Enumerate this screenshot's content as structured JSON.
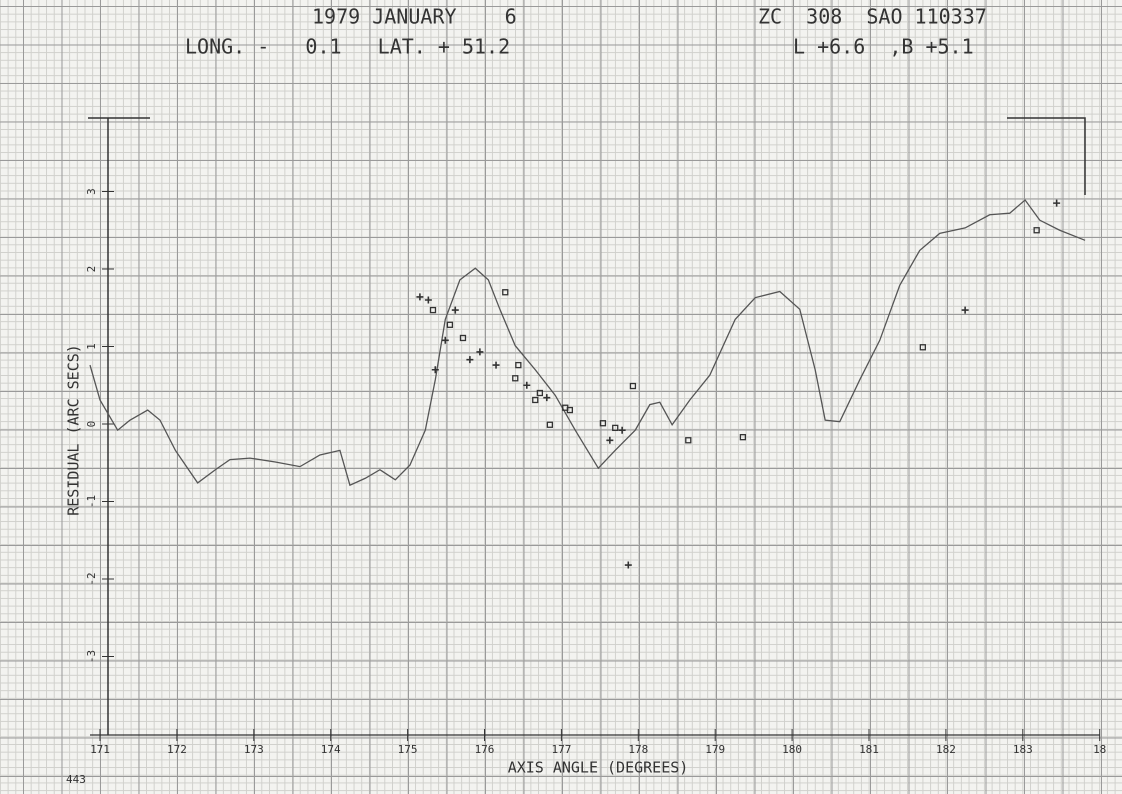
{
  "chart_data": {
    "type": "line",
    "title": "1979 JANUARY    6",
    "star": "ZC  308  SAO 110337",
    "location": "LONG. -   0.1   LAT. + 51.2",
    "librations": "L +6.6  ,B +5.1",
    "xlabel": "AXIS ANGLE (DEGREES)",
    "ylabel": "RESIDUAL (ARC SECS)",
    "page_number": "443",
    "xlim": [
      170.85,
      184.1
    ],
    "ylim": [
      -4,
      4
    ],
    "xticks": [
      171,
      172,
      173,
      174,
      175,
      176,
      177,
      178,
      179,
      180,
      181,
      182,
      183,
      {
        "value": 184,
        "label": "18"
      }
    ],
    "yticks": [
      -3,
      -2,
      -1,
      0,
      1,
      2,
      3
    ],
    "series": [
      {
        "type": "line",
        "color": "#555555",
        "x": [
          170.87,
          171.0,
          171.23,
          171.39,
          171.62,
          171.78,
          171.98,
          172.27,
          172.5,
          172.69,
          172.95,
          173.28,
          173.6,
          173.86,
          174.12,
          174.25,
          174.45,
          174.64,
          174.84,
          175.03,
          175.23,
          175.36,
          175.49,
          175.68,
          175.88,
          176.05,
          176.2,
          176.4,
          176.66,
          176.92,
          177.18,
          177.48,
          177.7,
          177.96,
          178.15,
          178.28,
          178.44,
          178.67,
          178.93,
          179.26,
          179.52,
          179.84,
          180.1,
          180.3,
          180.43,
          180.62,
          180.88,
          181.14,
          181.4,
          181.66,
          181.92,
          182.25,
          182.57,
          182.83,
          183.03,
          183.22,
          183.48,
          183.81
        ],
        "values": [
          0.76,
          0.31,
          -0.08,
          0.05,
          0.18,
          0.05,
          -0.34,
          -0.76,
          -0.59,
          -0.46,
          -0.44,
          -0.49,
          -0.55,
          -0.4,
          -0.34,
          -0.79,
          -0.7,
          -0.59,
          -0.72,
          -0.53,
          -0.08,
          0.57,
          1.35,
          1.86,
          2.01,
          1.86,
          1.48,
          1.01,
          0.7,
          0.37,
          -0.08,
          -0.57,
          -0.34,
          -0.08,
          0.25,
          0.28,
          -0.01,
          0.31,
          0.63,
          1.35,
          1.63,
          1.71,
          1.48,
          0.7,
          0.05,
          0.03,
          0.57,
          1.08,
          1.79,
          2.24,
          2.46,
          2.53,
          2.7,
          2.72,
          2.89,
          2.63,
          2.5,
          2.37
        ]
      },
      {
        "type": "scatter",
        "marker": "plus",
        "color": "#333333",
        "x": [
          175.16,
          175.27,
          175.36,
          175.49,
          175.62,
          175.81,
          175.94,
          176.15,
          176.55,
          176.81,
          177.63,
          177.79,
          177.87,
          182.25,
          183.44
        ],
        "values": [
          1.64,
          1.6,
          0.7,
          1.08,
          1.47,
          0.83,
          0.93,
          0.76,
          0.5,
          0.34,
          -0.21,
          -0.08,
          -1.82,
          1.47,
          2.85
        ]
      },
      {
        "type": "scatter",
        "marker": "square",
        "color": "#333333",
        "x": [
          175.33,
          175.55,
          175.72,
          176.27,
          176.4,
          176.44,
          176.66,
          176.72,
          176.85,
          177.05,
          177.11,
          177.54,
          177.7,
          177.93,
          178.65,
          179.36,
          181.7,
          183.18
        ],
        "values": [
          1.47,
          1.28,
          1.11,
          1.7,
          0.59,
          0.76,
          0.31,
          0.4,
          -0.01,
          0.21,
          0.18,
          0.01,
          -0.05,
          0.49,
          -0.21,
          -0.17,
          0.99,
          2.5
        ]
      }
    ]
  }
}
